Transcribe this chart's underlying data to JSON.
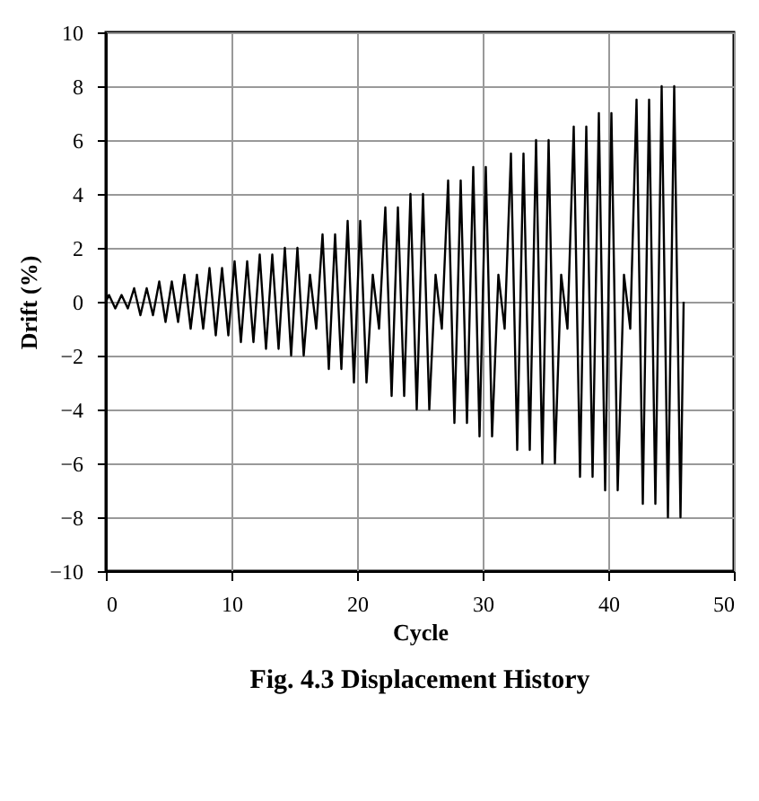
{
  "chart_data": {
    "type": "line",
    "title": "Fig. 4.3 Displacement History",
    "xlabel": "Cycle",
    "ylabel": "Drift (%)",
    "x": [
      0,
      0.25,
      0.75,
      1.25,
      1.75,
      2.25,
      2.75,
      3.25,
      3.75,
      4.25,
      4.75,
      5.25,
      5.75,
      6.25,
      6.75,
      7.25,
      7.75,
      8.25,
      8.75,
      9.25,
      9.75,
      10.25,
      10.75,
      11.25,
      11.75,
      12.25,
      12.75,
      13.25,
      13.75,
      14.25,
      14.75,
      15.25,
      15.75,
      16.25,
      16.75,
      17.25,
      17.75,
      18.25,
      18.75,
      19.25,
      19.75,
      20.25,
      20.75,
      21.25,
      21.75,
      22.25,
      22.75,
      23.25,
      23.75,
      24.25,
      24.75,
      25.25,
      25.75,
      26.25,
      26.75,
      27.25,
      27.75,
      28.25,
      28.75,
      29.25,
      29.75,
      30.25,
      30.75,
      31.25,
      31.75,
      32.25,
      32.75,
      33.25,
      33.75,
      34.25,
      34.75,
      35.25,
      35.75,
      36.25,
      36.75,
      37.25,
      37.75,
      38.25,
      38.75,
      39.25,
      39.75,
      40.25,
      40.75,
      41.25,
      41.75,
      42.25,
      42.75,
      43.25,
      43.75,
      44.25,
      44.75,
      45.25,
      45.75,
      46
    ],
    "series": [
      {
        "color": "#000000",
        "values": [
          0,
          0.25,
          -0.25,
          0.25,
          -0.25,
          0.5,
          -0.5,
          0.5,
          -0.5,
          0.75,
          -0.75,
          0.75,
          -0.75,
          1,
          -1,
          1,
          -1,
          1.25,
          -1.25,
          1.25,
          -1.25,
          1.5,
          -1.5,
          1.5,
          -1.5,
          1.75,
          -1.75,
          1.75,
          -1.75,
          2,
          -2,
          2,
          -2,
          1,
          -1,
          2.5,
          -2.5,
          2.5,
          -2.5,
          3,
          -3,
          3,
          -3,
          1,
          -1,
          3.5,
          -3.5,
          3.5,
          -3.5,
          4,
          -4,
          4,
          -4,
          1,
          -1,
          4.5,
          -4.5,
          4.5,
          -4.5,
          5,
          -5,
          5,
          -5,
          1,
          -1,
          5.5,
          -5.5,
          5.5,
          -5.5,
          6,
          -6,
          6,
          -6,
          1,
          -1,
          6.5,
          -6.5,
          6.5,
          -6.5,
          7,
          -7,
          7,
          -7,
          1,
          -1,
          7.5,
          -7.5,
          7.5,
          -7.5,
          8,
          -8,
          8,
          -8,
          0
        ]
      }
    ],
    "xlim": [
      0,
      50
    ],
    "xticks": [
      0,
      10,
      20,
      30,
      40,
      50
    ],
    "ylim": [
      -10,
      10
    ],
    "yticks": [
      -10,
      -8,
      -6,
      -4,
      -2,
      0,
      2,
      4,
      6,
      8,
      10
    ],
    "grid": true,
    "marker": "none",
    "line_style": "solid"
  }
}
